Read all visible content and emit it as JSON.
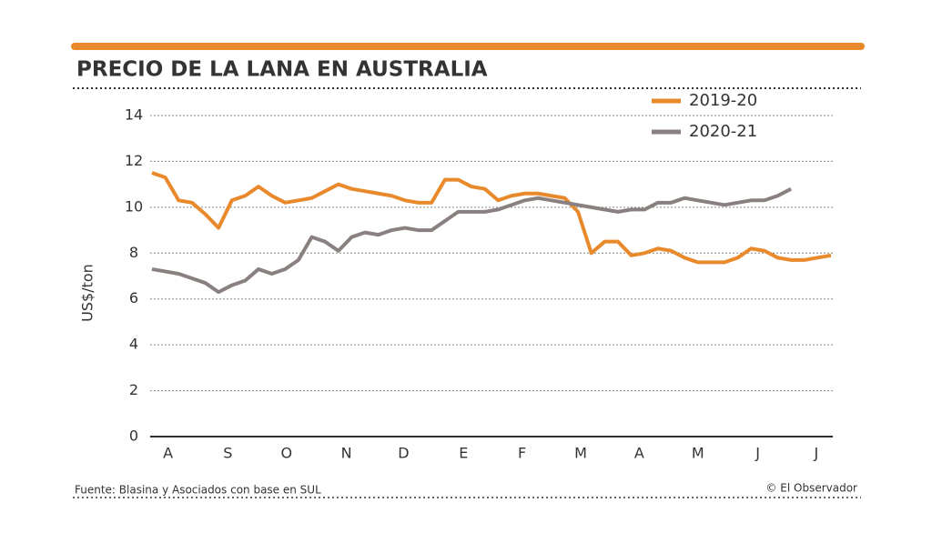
{
  "chart_data": {
    "type": "line",
    "title": "PRECIO DE LA LANA EN AUSTRALIA",
    "y_label": "US$/ton",
    "source": "Fuente: Blasina y Asociados con base en SUL",
    "credit": "© El Observador",
    "x": [
      0,
      1,
      2,
      3,
      4,
      5,
      6,
      7,
      8,
      9,
      10,
      11,
      12,
      13,
      14,
      15,
      16,
      17,
      18,
      19,
      20,
      21,
      22,
      23,
      24,
      25,
      26,
      27,
      28,
      29,
      30,
      31,
      32,
      33,
      34,
      35,
      36,
      37,
      38,
      39,
      40,
      41,
      42,
      43,
      44,
      45,
      46,
      47,
      48,
      49,
      50,
      51
    ],
    "xlim": [
      0,
      51
    ],
    "xticks": [
      {
        "value": 1.2,
        "label": "A"
      },
      {
        "value": 5.7,
        "label": "S"
      },
      {
        "value": 10.1,
        "label": "O"
      },
      {
        "value": 14.6,
        "label": "N"
      },
      {
        "value": 18.9,
        "label": "D"
      },
      {
        "value": 23.4,
        "label": "E"
      },
      {
        "value": 27.8,
        "label": "F"
      },
      {
        "value": 32.2,
        "label": "M"
      },
      {
        "value": 36.6,
        "label": "A"
      },
      {
        "value": 41.0,
        "label": "M"
      },
      {
        "value": 45.5,
        "label": "J"
      },
      {
        "value": 49.9,
        "label": "J"
      }
    ],
    "ylim": [
      0,
      14
    ],
    "yticks": [
      0,
      2,
      4,
      6,
      8,
      10,
      12,
      14
    ],
    "grid": true,
    "legend": "top-right",
    "series": [
      {
        "name": "2019-20",
        "color": "#e8892b",
        "values": [
          11.5,
          11.3,
          10.3,
          10.2,
          9.7,
          9.1,
          10.3,
          10.5,
          10.9,
          10.5,
          10.2,
          10.3,
          10.4,
          10.7,
          11.0,
          10.8,
          10.7,
          10.6,
          10.5,
          10.3,
          10.2,
          10.2,
          11.2,
          11.2,
          10.9,
          10.8,
          10.3,
          10.5,
          10.6,
          10.6,
          10.5,
          10.4,
          9.8,
          8.0,
          8.5,
          8.5,
          7.9,
          8.0,
          8.2,
          8.1,
          7.8,
          7.6,
          7.6,
          7.6,
          7.8,
          8.2,
          8.1,
          7.8,
          7.7,
          7.7,
          7.8,
          7.9
        ]
      },
      {
        "name": "2020-21",
        "color": "#8a8080",
        "values": [
          7.3,
          7.2,
          7.1,
          6.9,
          6.7,
          6.3,
          6.6,
          6.8,
          7.3,
          7.1,
          7.3,
          7.7,
          8.7,
          8.5,
          8.1,
          8.7,
          8.9,
          8.8,
          9.0,
          9.1,
          9.0,
          9.0,
          9.4,
          9.8,
          9.8,
          9.8,
          9.9,
          10.1,
          10.3,
          10.4,
          10.3,
          10.2,
          10.1,
          10.0,
          9.9,
          9.8,
          9.9,
          9.9,
          10.2,
          10.2,
          10.4,
          10.3,
          10.2,
          10.1,
          10.2,
          10.3,
          10.3,
          10.5,
          10.8,
          null,
          null,
          null
        ]
      }
    ]
  }
}
